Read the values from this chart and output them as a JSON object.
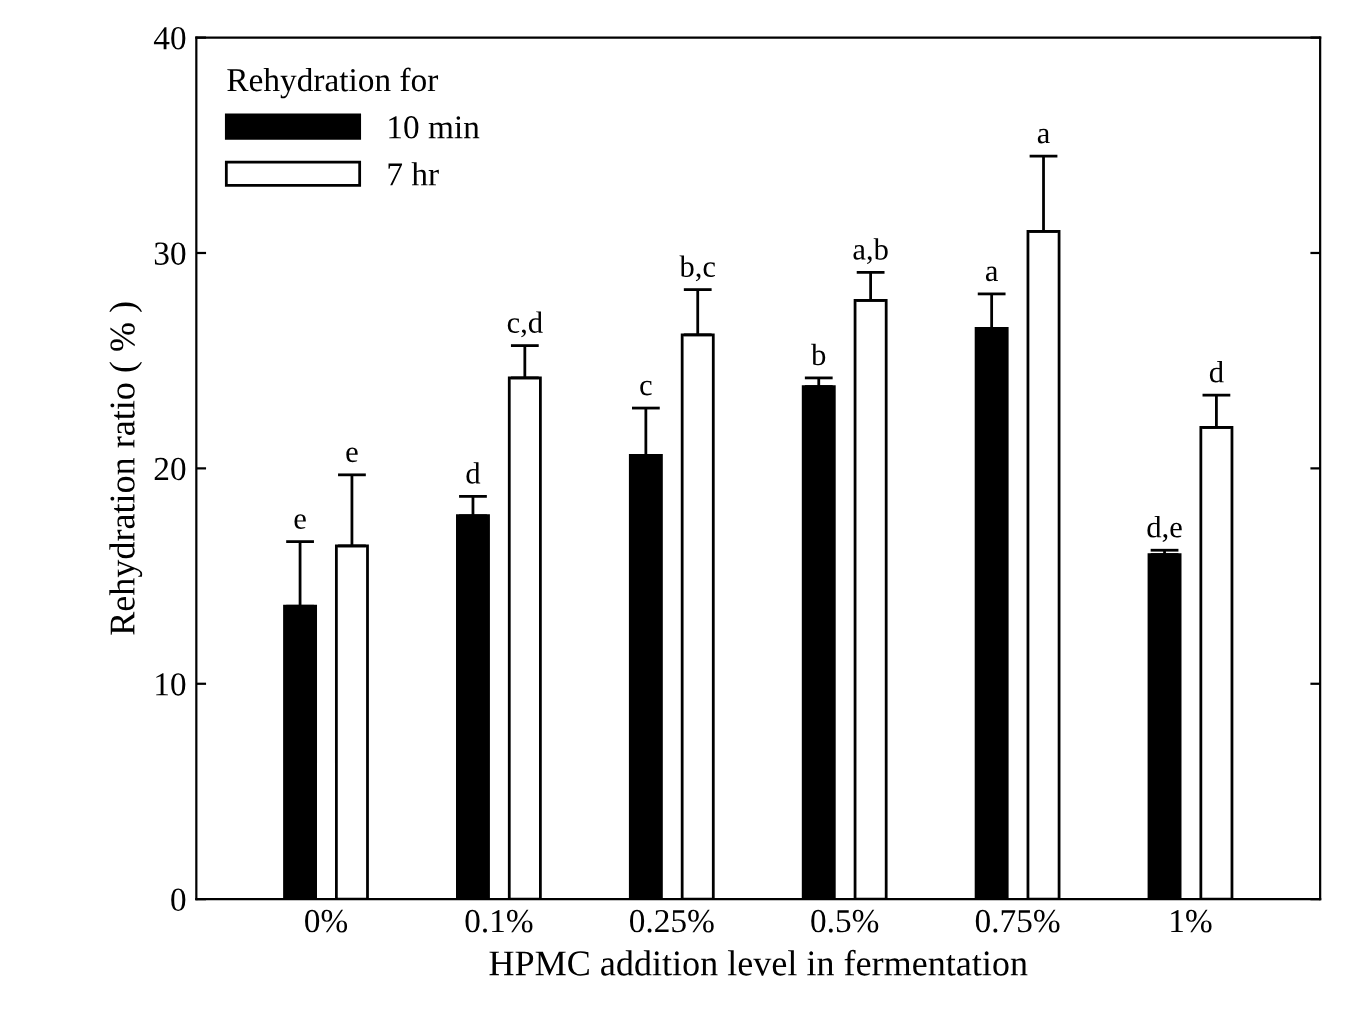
{
  "chart_data": {
    "type": "bar",
    "xlabel": "HPMC addition level in fermentation",
    "ylabel": "Rehydration ratio ( % )",
    "legend_title": "Rehydration for",
    "legend": "top left",
    "grid": false,
    "categories": [
      "0%",
      "0.1%",
      "0.25%",
      "0.5%",
      "0.75%",
      "1%"
    ],
    "ylim": [
      0,
      40
    ],
    "yticks": [
      0,
      10,
      20,
      30,
      40
    ],
    "series": [
      {
        "name": "10 min",
        "color": "#000000",
        "values": [
          13.6,
          17.8,
          20.6,
          23.8,
          26.5,
          16.0
        ],
        "errors": [
          3.0,
          0.9,
          2.2,
          0.4,
          1.6,
          0.2
        ]
      },
      {
        "name": "7 hr",
        "color": "#ffffff",
        "values": [
          16.4,
          24.2,
          26.2,
          27.8,
          31.0,
          21.9
        ],
        "errors": [
          3.3,
          1.5,
          2.1,
          1.3,
          3.5,
          1.5
        ]
      }
    ],
    "annotations": [
      "e",
      "e",
      "d",
      "c,d",
      "c",
      "b,c",
      "b",
      "a,b",
      "a",
      "a",
      "d,e",
      "d"
    ]
  }
}
